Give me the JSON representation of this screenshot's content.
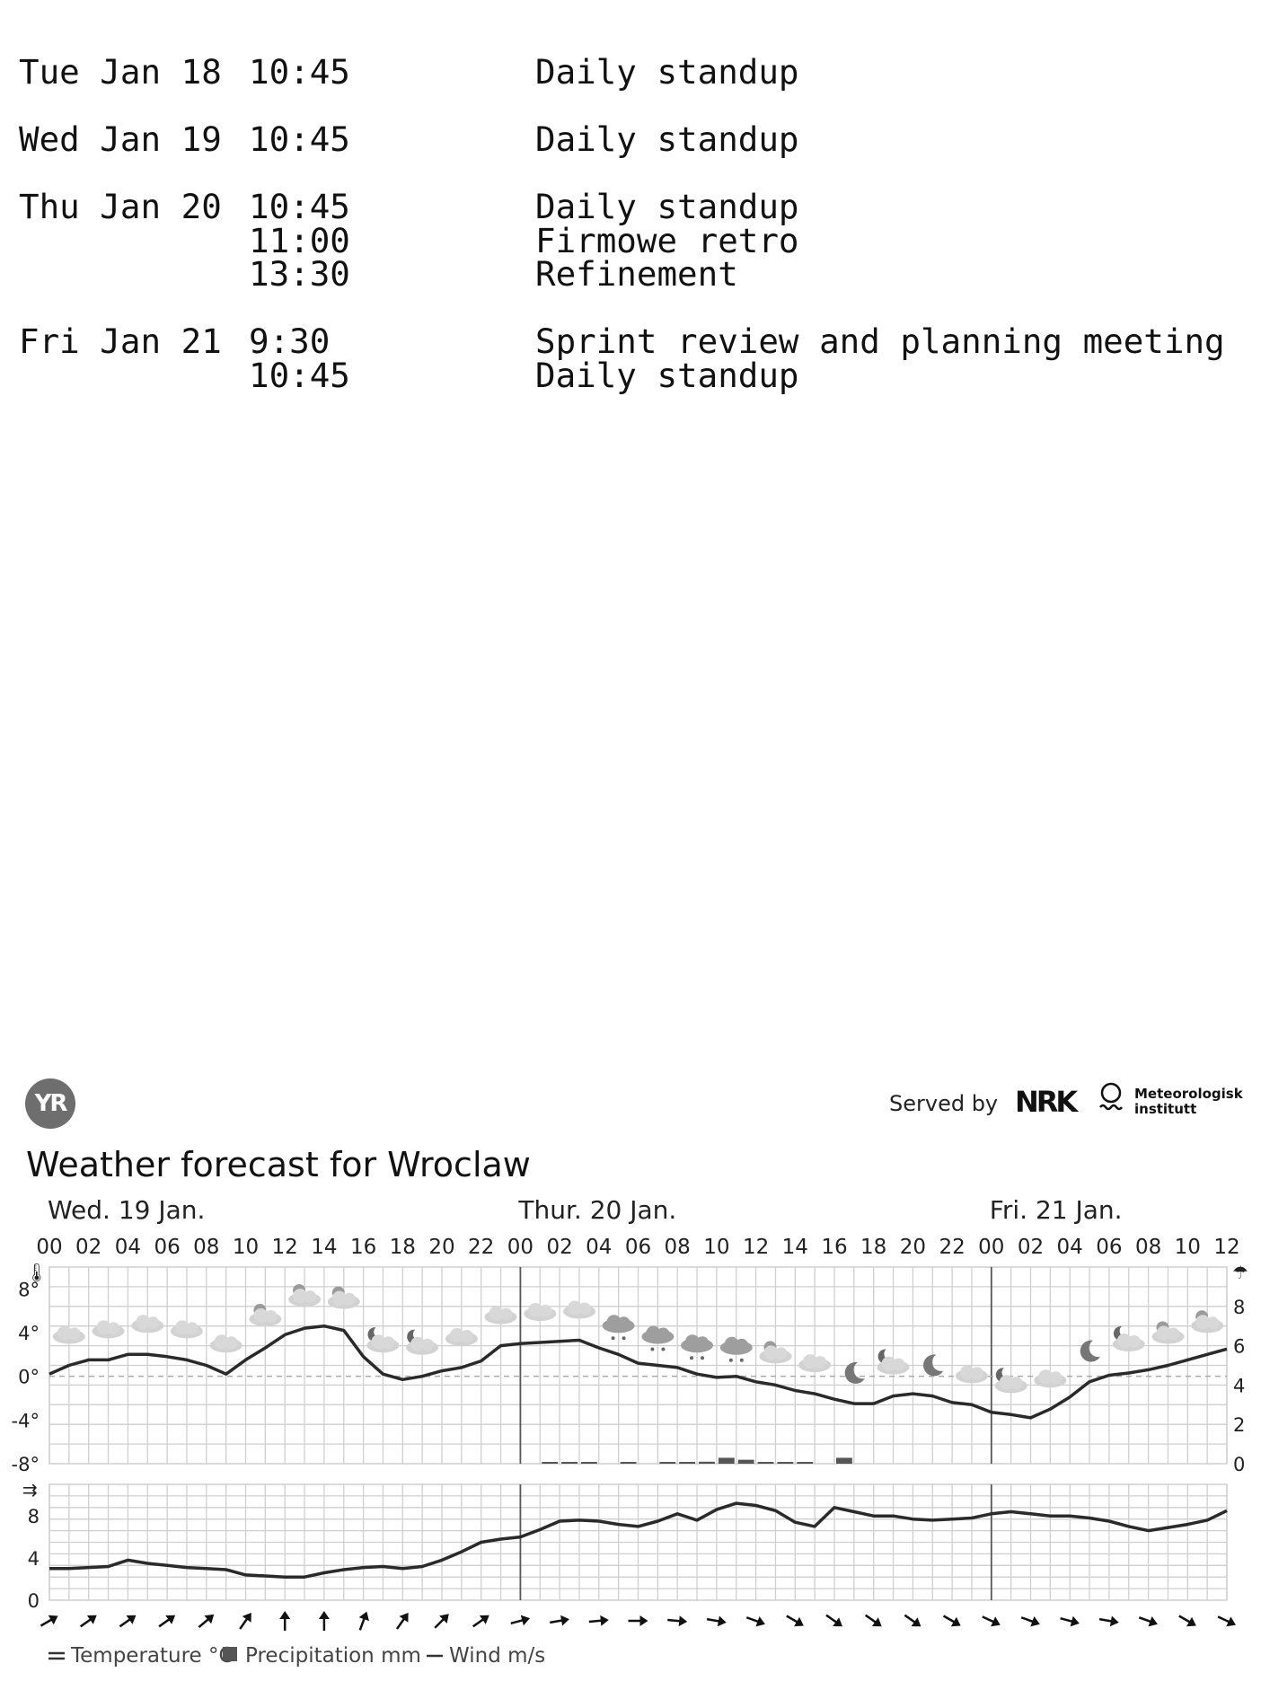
{
  "agenda": {
    "days": [
      {
        "date": "Tue Jan 18",
        "events": [
          {
            "time": "10:45",
            "title": "Daily standup"
          }
        ]
      },
      {
        "date": "Wed Jan 19",
        "events": [
          {
            "time": "10:45",
            "title": "Daily standup"
          }
        ]
      },
      {
        "date": "Thu Jan 20",
        "events": [
          {
            "time": "10:45",
            "title": "Daily standup"
          },
          {
            "time": "11:00",
            "title": "Firmowe retro"
          },
          {
            "time": "13:30",
            "title": "Refinement"
          }
        ]
      },
      {
        "date": "Fri Jan 21",
        "events": [
          {
            "time": "9:30",
            "title": "Sprint review and planning meeting"
          },
          {
            "time": "10:45",
            "title": "Daily standup"
          }
        ]
      }
    ]
  },
  "widget": {
    "logo_text": "YR",
    "served_by": "Served by",
    "nrk_logo": "NRK",
    "met_logo": [
      "Meteorologisk",
      "institutt"
    ],
    "title": "Weather forecast for Wroclaw",
    "colors": {
      "grid": "#cfcfcf",
      "line": "#2a2a2a",
      "text": "#222222",
      "bar": "#555555",
      "icon": "#bdbdbd"
    }
  },
  "chart_data": [
    {
      "type": "line",
      "title": "Temperature °C / Precipitation mm",
      "day_labels": [
        "Wed. 19 Jan.",
        "Thur. 20 Jan.",
        "Fri. 21 Jan."
      ],
      "x_tick_labels": [
        "00",
        "02",
        "04",
        "06",
        "08",
        "10",
        "12",
        "14",
        "16",
        "18",
        "20",
        "22",
        "00",
        "02",
        "04",
        "06",
        "08",
        "10",
        "12",
        "14",
        "16",
        "18",
        "20",
        "22",
        "00",
        "02",
        "04",
        "06",
        "08",
        "10",
        "12"
      ],
      "hours": [
        0,
        1,
        2,
        3,
        4,
        5,
        6,
        7,
        8,
        9,
        10,
        11,
        12,
        13,
        14,
        15,
        16,
        17,
        18,
        19,
        20,
        21,
        22,
        23,
        24,
        25,
        26,
        27,
        28,
        29,
        30,
        31,
        32,
        33,
        34,
        35,
        36,
        37,
        38,
        39,
        40,
        41,
        42,
        43,
        44,
        45,
        46,
        47,
        48,
        49,
        50,
        51,
        52,
        53,
        54,
        55,
        56,
        57,
        58,
        59,
        60
      ],
      "left_axis": {
        "ticks": [
          "8°",
          "4°",
          "0°",
          "-4°",
          "-8°"
        ],
        "values": [
          8,
          4,
          0,
          -4,
          -8
        ],
        "ylim": [
          -8,
          10
        ]
      },
      "right_axis": {
        "ticks": [
          "8",
          "6",
          "4",
          "2",
          "0"
        ],
        "values": [
          8,
          6,
          4,
          2,
          0
        ],
        "ylim": [
          0,
          10
        ]
      },
      "series": [
        {
          "name": "Temperature °C",
          "values": [
            0.2,
            1.0,
            1.5,
            1.5,
            2.0,
            2.0,
            1.8,
            1.5,
            1.0,
            0.2,
            1.5,
            2.6,
            3.8,
            4.4,
            4.6,
            4.2,
            1.8,
            0.2,
            -0.3,
            0.0,
            0.5,
            0.8,
            1.4,
            2.8,
            3.0,
            3.1,
            3.2,
            3.3,
            2.6,
            2.0,
            1.2,
            1.0,
            0.8,
            0.2,
            -0.1,
            0.0,
            -0.5,
            -0.8,
            -1.3,
            -1.6,
            -2.1,
            -2.5,
            -2.5,
            -1.8,
            -1.6,
            -1.8,
            -2.4,
            -2.6,
            -3.3,
            -3.5,
            -3.8,
            -3.0,
            -1.9,
            -0.5,
            0.1,
            0.3,
            0.6,
            1.0,
            1.5,
            2.0,
            2.5
          ]
        },
        {
          "name": "Precipitation mm",
          "axis": "right",
          "bars": [
            {
              "hour": 25,
              "value": 0.05
            },
            {
              "hour": 26,
              "value": 0.05
            },
            {
              "hour": 27,
              "value": 0.05
            },
            {
              "hour": 29,
              "value": 0.05
            },
            {
              "hour": 31,
              "value": 0.05
            },
            {
              "hour": 32,
              "value": 0.05
            },
            {
              "hour": 33,
              "value": 0.1
            },
            {
              "hour": 34,
              "value": 0.3
            },
            {
              "hour": 35,
              "value": 0.2
            },
            {
              "hour": 36,
              "value": 0.05
            },
            {
              "hour": 37,
              "value": 0.05
            },
            {
              "hour": 38,
              "value": 0.05
            },
            {
              "hour": 40,
              "value": 0.3
            }
          ]
        }
      ],
      "weather_icons": [
        "cloudy",
        "cloudy",
        "cloudy",
        "cloudy",
        "cloudy",
        "partly-sunny",
        "partly-sunny",
        "partly-sunny",
        "partly-night",
        "partly-night",
        "cloudy",
        "cloudy",
        "cloudy",
        "cloudy",
        "sleet",
        "sleet",
        "snow",
        "snow",
        "partly-sunny",
        "cloudy",
        "moon",
        "partly-night",
        "moon",
        "cloudy",
        "partly-night",
        "cloudy",
        "moon",
        "partly-night",
        "partly-sunny",
        "partly-sunny"
      ]
    },
    {
      "type": "line",
      "title": "Wind m/s",
      "left_axis": {
        "ticks": [
          "8",
          "4",
          "0"
        ],
        "values": [
          8,
          4,
          0
        ],
        "ylim": [
          0,
          11
        ]
      },
      "series": [
        {
          "name": "Wind m/s",
          "values": [
            3.0,
            3.0,
            3.1,
            3.2,
            3.8,
            3.5,
            3.3,
            3.1,
            3.0,
            2.9,
            2.4,
            2.3,
            2.2,
            2.2,
            2.6,
            2.9,
            3.1,
            3.2,
            3.0,
            3.2,
            3.8,
            4.6,
            5.5,
            5.8,
            6.0,
            6.7,
            7.5,
            7.6,
            7.5,
            7.2,
            7.0,
            7.5,
            8.2,
            7.6,
            8.6,
            9.2,
            9.0,
            8.5,
            7.4,
            7.0,
            8.8,
            8.4,
            8.0,
            8.0,
            7.7,
            7.6,
            7.7,
            7.8,
            8.2,
            8.4,
            8.2,
            8.0,
            8.0,
            7.8,
            7.5,
            7.0,
            6.6,
            6.9,
            7.2,
            7.6,
            8.5
          ]
        }
      ],
      "wind_direction_deg": [
        60,
        55,
        55,
        55,
        50,
        35,
        0,
        0,
        20,
        35,
        45,
        55,
        75,
        80,
        85,
        90,
        95,
        100,
        110,
        120,
        125,
        125,
        125,
        120,
        115,
        110,
        105,
        100,
        110,
        120,
        115
      ]
    }
  ],
  "legend": [
    {
      "symbol": "double-line",
      "label": "Temperature °C"
    },
    {
      "symbol": "square",
      "label": "Precipitation mm"
    },
    {
      "symbol": "line",
      "label": "Wind m/s"
    }
  ]
}
